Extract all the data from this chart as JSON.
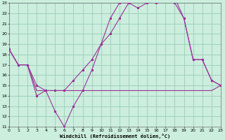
{
  "xlabel": "Windchill (Refroidissement éolien,°C)",
  "background_color": "#cceedd",
  "grid_color": "#99ccbb",
  "line_color": "#993399",
  "xlim": [
    0,
    23
  ],
  "ylim": [
    11,
    23
  ],
  "xticks": [
    0,
    1,
    2,
    3,
    4,
    5,
    6,
    7,
    8,
    9,
    10,
    11,
    12,
    13,
    14,
    15,
    16,
    17,
    18,
    19,
    20,
    21,
    22,
    23
  ],
  "yticks": [
    11,
    12,
    13,
    14,
    15,
    16,
    17,
    18,
    19,
    20,
    21,
    22,
    23
  ],
  "line1_x": [
    0,
    1,
    2,
    3,
    4,
    5,
    6,
    7,
    8,
    9,
    10,
    11,
    12,
    13,
    14,
    15,
    16,
    17,
    18,
    19,
    20,
    21,
    22,
    23
  ],
  "line1_y": [
    18.5,
    17.0,
    17.0,
    14.5,
    14.5,
    14.5,
    14.5,
    14.5,
    14.5,
    14.5,
    14.5,
    14.5,
    14.5,
    14.5,
    14.5,
    14.5,
    14.5,
    14.5,
    14.5,
    14.5,
    14.5,
    14.5,
    14.5,
    15.0
  ],
  "line2_x": [
    0,
    1,
    2,
    3,
    4,
    5,
    6,
    7,
    8,
    9,
    10,
    11,
    12,
    13,
    14,
    15,
    16,
    17,
    18,
    19,
    20,
    21,
    22,
    23
  ],
  "line2_y": [
    18.5,
    17.0,
    17.0,
    14.0,
    14.5,
    12.5,
    11.0,
    13.0,
    14.5,
    16.5,
    19.0,
    21.5,
    23.0,
    23.0,
    22.5,
    23.0,
    23.5,
    23.5,
    23.0,
    21.5,
    17.5,
    17.5,
    15.5,
    15.0
  ],
  "line3_x": [
    0,
    1,
    2,
    3,
    4,
    5,
    6,
    7,
    8,
    9,
    10,
    11,
    12,
    13,
    14,
    15,
    16,
    17,
    18,
    19,
    20,
    21,
    22,
    23
  ],
  "line3_y": [
    18.5,
    17.0,
    17.0,
    15.0,
    14.5,
    14.5,
    14.5,
    15.5,
    16.5,
    17.5,
    19.0,
    20.0,
    21.5,
    23.0,
    23.5,
    23.5,
    23.0,
    23.5,
    23.5,
    21.5,
    17.5,
    17.5,
    15.5,
    15.0
  ],
  "marker_x2": [
    1,
    2,
    3,
    4,
    5,
    6,
    7,
    8,
    9,
    10,
    11,
    12,
    13,
    14,
    15,
    16,
    17,
    18,
    19,
    20,
    21,
    22,
    23
  ],
  "marker_x3": [
    7,
    9,
    10,
    11,
    12,
    13,
    14,
    15,
    16,
    17,
    18,
    19,
    20,
    21,
    22,
    23
  ]
}
